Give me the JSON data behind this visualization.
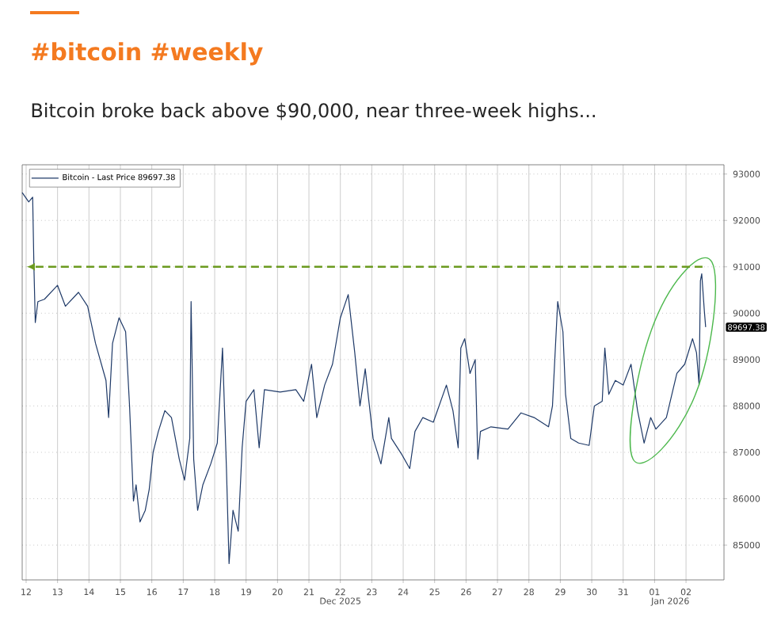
{
  "chart_data": {
    "type": "line",
    "title": "#bitcoin #weekly",
    "subtitle": "Bitcoin broke back above $90,000, near three-week highs...",
    "series": [
      {
        "name": "Bitcoin - Last Price 89697.38",
        "color": "#1f3a68",
        "x": [
          "2025-12-12T09:00",
          "2025-12-12T14:00",
          "2025-12-12T17:00",
          "2025-12-12T18:00",
          "2025-12-12T19:00",
          "2025-12-12T21:00",
          "2025-12-13T02:00",
          "2025-12-13T12:00",
          "2025-12-13T18:00",
          "2025-12-14T04:00",
          "2025-12-14T11:00",
          "2025-12-14T17:00",
          "2025-12-15T01:00",
          "2025-12-15T03:00",
          "2025-12-15T06:00",
          "2025-12-15T11:00",
          "2025-12-15T16:00",
          "2025-12-15T19:00",
          "2025-12-15T22:00",
          "2025-12-16T00:00",
          "2025-12-16T03:00",
          "2025-12-16T07:00",
          "2025-12-16T10:00",
          "2025-12-16T13:00",
          "2025-12-16T17:00",
          "2025-12-16T22:00",
          "2025-12-17T03:00",
          "2025-12-17T09:00",
          "2025-12-17T13:00",
          "2025-12-17T17:00",
          "2025-12-17T18:00",
          "2025-12-17T20:00",
          "2025-12-17T23:00",
          "2025-12-18T03:00",
          "2025-12-18T09:00",
          "2025-12-18T14:00",
          "2025-12-18T18:00",
          "2025-12-18T21:00",
          "2025-12-18T23:00",
          "2025-12-19T02:00",
          "2025-12-19T06:00",
          "2025-12-19T09:00",
          "2025-12-19T12:00",
          "2025-12-19T18:00",
          "2025-12-19T22:00",
          "2025-12-20T02:00",
          "2025-12-20T14:00",
          "2025-12-21T02:00",
          "2025-12-21T08:00",
          "2025-12-21T14:00",
          "2025-12-21T18:00",
          "2025-12-22T00:00",
          "2025-12-22T06:00",
          "2025-12-22T12:00",
          "2025-12-22T18:00",
          "2025-12-22T23:00",
          "2025-12-23T03:00",
          "2025-12-23T07:00",
          "2025-12-23T13:00",
          "2025-12-23T19:00",
          "2025-12-24T01:00",
          "2025-12-24T03:00",
          "2025-12-24T11:00",
          "2025-12-24T17:00",
          "2025-12-24T21:00",
          "2025-12-25T03:00",
          "2025-12-25T11:00",
          "2025-12-25T21:00",
          "2025-12-26T02:00",
          "2025-12-26T06:00",
          "2025-12-26T08:00",
          "2025-12-26T11:00",
          "2025-12-26T15:00",
          "2025-12-26T19:00",
          "2025-12-26T21:00",
          "2025-12-26T23:00",
          "2025-12-27T07:00",
          "2025-12-27T20:00",
          "2025-12-28T06:00",
          "2025-12-28T16:00",
          "2025-12-29T03:00",
          "2025-12-29T06:00",
          "2025-12-29T10:00",
          "2025-12-29T14:00",
          "2025-12-29T16:00",
          "2025-12-29T20:00",
          "2025-12-30T02:00",
          "2025-12-30T10:00",
          "2025-12-30T14:00",
          "2025-12-30T20:00",
          "2025-12-30T22:00",
          "2025-12-31T01:00",
          "2025-12-31T06:00",
          "2025-12-31T12:00",
          "2025-12-31T18:00",
          "2025-12-31T23:00",
          "2026-01-01T04:00",
          "2026-01-01T09:00",
          "2026-01-01T13:00",
          "2026-01-01T21:00",
          "2026-01-02T05:00",
          "2026-01-02T11:00",
          "2026-01-02T17:00",
          "2026-01-02T20:00",
          "2026-01-02T22:00",
          "2026-01-02T23:00",
          "2026-01-03T00:00",
          "2026-01-03T02:00",
          "2026-01-03T03:00"
        ],
        "values": [
          92600,
          92400,
          92500,
          90950,
          89800,
          90250,
          90300,
          90600,
          90150,
          90450,
          90150,
          89350,
          88550,
          87750,
          89350,
          89900,
          89600,
          88000,
          85950,
          86300,
          85500,
          85750,
          86200,
          87000,
          87450,
          87900,
          87750,
          86850,
          86400,
          87300,
          90250,
          86850,
          85750,
          86300,
          86750,
          87200,
          89250,
          86650,
          84600,
          85750,
          85300,
          87100,
          88100,
          88350,
          87100,
          88350,
          88300,
          88350,
          88100,
          88900,
          87750,
          88450,
          88900,
          89900,
          90400,
          89150,
          88000,
          88800,
          87300,
          86750,
          87750,
          87300,
          86950,
          86650,
          87450,
          87750,
          87650,
          88450,
          87900,
          87100,
          89250,
          89450,
          88700,
          89000,
          86850,
          87450,
          87550,
          87500,
          87850,
          87750,
          87550,
          88000,
          90250,
          89600,
          88250,
          87300,
          87200,
          87150,
          88000,
          88100,
          89250,
          88250,
          88550,
          88450,
          88900,
          87900,
          87200,
          87750,
          87500,
          87750,
          88700,
          88900,
          89450,
          89150,
          88450,
          90700,
          90850,
          90050,
          89700
        ]
      }
    ],
    "xlim": [
      "2025-12-12T09:00",
      "2026-01-03T17:00"
    ],
    "xticks": [
      {
        "value": "2025-12-12T12:00",
        "label": "12"
      },
      {
        "value": "2025-12-13T12:00",
        "label": "13"
      },
      {
        "value": "2025-12-14T12:00",
        "label": "14"
      },
      {
        "value": "2025-12-15T12:00",
        "label": "15"
      },
      {
        "value": "2025-12-16T12:00",
        "label": "16"
      },
      {
        "value": "2025-12-17T12:00",
        "label": "17"
      },
      {
        "value": "2025-12-18T12:00",
        "label": "18"
      },
      {
        "value": "2025-12-19T12:00",
        "label": "19"
      },
      {
        "value": "2025-12-20T12:00",
        "label": "20"
      },
      {
        "value": "2025-12-21T12:00",
        "label": "21"
      },
      {
        "value": "2025-12-22T12:00",
        "label": "22"
      },
      {
        "value": "2025-12-23T12:00",
        "label": "23"
      },
      {
        "value": "2025-12-24T12:00",
        "label": "24"
      },
      {
        "value": "2025-12-25T12:00",
        "label": "25"
      },
      {
        "value": "2025-12-26T12:00",
        "label": "26"
      },
      {
        "value": "2025-12-27T12:00",
        "label": "27"
      },
      {
        "value": "2025-12-28T12:00",
        "label": "28"
      },
      {
        "value": "2025-12-29T12:00",
        "label": "29"
      },
      {
        "value": "2025-12-30T12:00",
        "label": "30"
      },
      {
        "value": "2025-12-31T12:00",
        "label": "31"
      },
      {
        "value": "2026-01-01T12:00",
        "label": "01"
      },
      {
        "value": "2026-01-02T12:00",
        "label": "02"
      }
    ],
    "ylim": [
      84250,
      93200
    ],
    "yticks": [
      85000,
      86000,
      87000,
      88000,
      89000,
      90000,
      91000,
      92000,
      93000
    ],
    "ref_lines": [
      {
        "axis": "y",
        "value": 91000,
        "color": "#6b9a1f",
        "line_style": "dashed"
      }
    ],
    "annotations": [
      "Dec 2025",
      "Jan 2026",
      {
        "text": "89697.38",
        "x": "2026-01-03T03:00",
        "y": 89697.38
      }
    ],
    "grid": true,
    "legend": "top left",
    "marker": "none",
    "line_style": "solid"
  }
}
